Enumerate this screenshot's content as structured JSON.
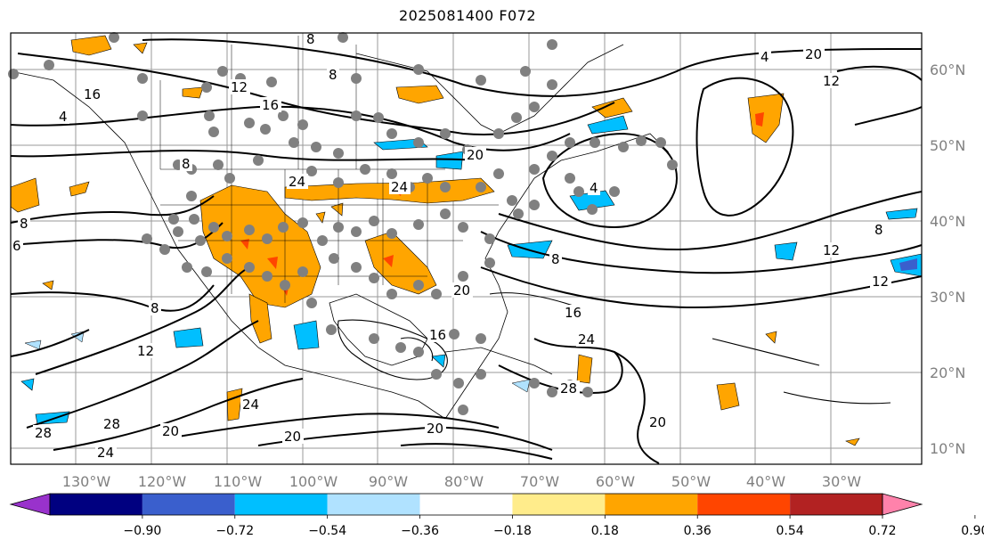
{
  "title": "2025081400 F072",
  "axes": {
    "lon_labels": [
      "130°W",
      "120°W",
      "110°W",
      "100°W",
      "90°W",
      "80°W",
      "70°W",
      "60°W",
      "50°W",
      "40°W",
      "30°W"
    ],
    "lat_labels": [
      "60°N",
      "50°N",
      "40°N",
      "30°N",
      "20°N",
      "10°N"
    ]
  },
  "contour_labels": [
    "8",
    "8",
    "16",
    "12",
    "16",
    "4",
    "20",
    "8",
    "24",
    "24",
    "8",
    "6",
    "8",
    "12",
    "28",
    "20",
    "24",
    "20",
    "28",
    "24",
    "20",
    "16",
    "20",
    "24",
    "28",
    "20",
    "4",
    "8",
    "12",
    "12",
    "12",
    "16",
    "20",
    "8",
    "4"
  ],
  "colorbar": {
    "ticks": [
      "−0.90",
      "−0.72",
      "−0.54",
      "−0.36",
      "−0.18",
      "0.18",
      "0.36",
      "0.54",
      "0.72",
      "0.90"
    ],
    "colors": [
      "#9932cc",
      "#000080",
      "#3a5fcd",
      "#00bfff",
      "#b0e2ff",
      "#ffffff",
      "#ffec8b",
      "#ffa500",
      "#ff4500",
      "#b22222",
      "#ff82ab"
    ]
  }
}
